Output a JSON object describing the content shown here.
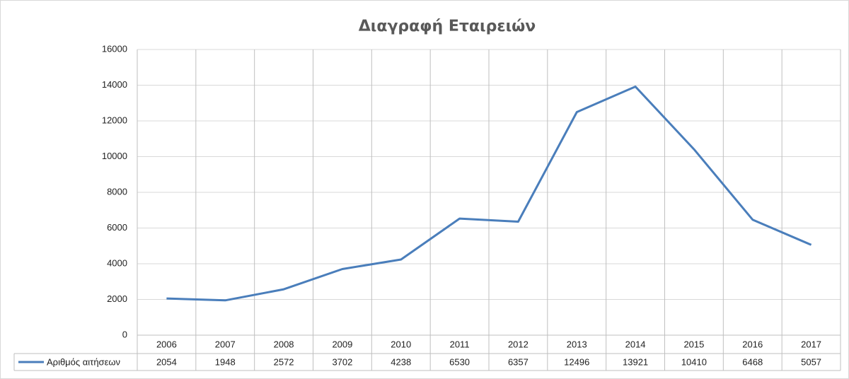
{
  "chart_data": {
    "type": "line",
    "title": "Διαγραφή Εταιρειών",
    "categories": [
      "2006",
      "2007",
      "2008",
      "2009",
      "2010",
      "2011",
      "2012",
      "2013",
      "2014",
      "2015",
      "2016",
      "2017"
    ],
    "series": [
      {
        "name": "Αριθμός αιτήσεων",
        "color": "#4a7ebb",
        "values": [
          2054,
          1948,
          2572,
          3702,
          4238,
          6530,
          6357,
          12496,
          13921,
          10410,
          6468,
          5057
        ]
      }
    ],
    "ylim": [
      0,
      16000
    ],
    "yticks": [
      0,
      2000,
      4000,
      6000,
      8000,
      10000,
      12000,
      14000,
      16000
    ],
    "grid": true
  }
}
